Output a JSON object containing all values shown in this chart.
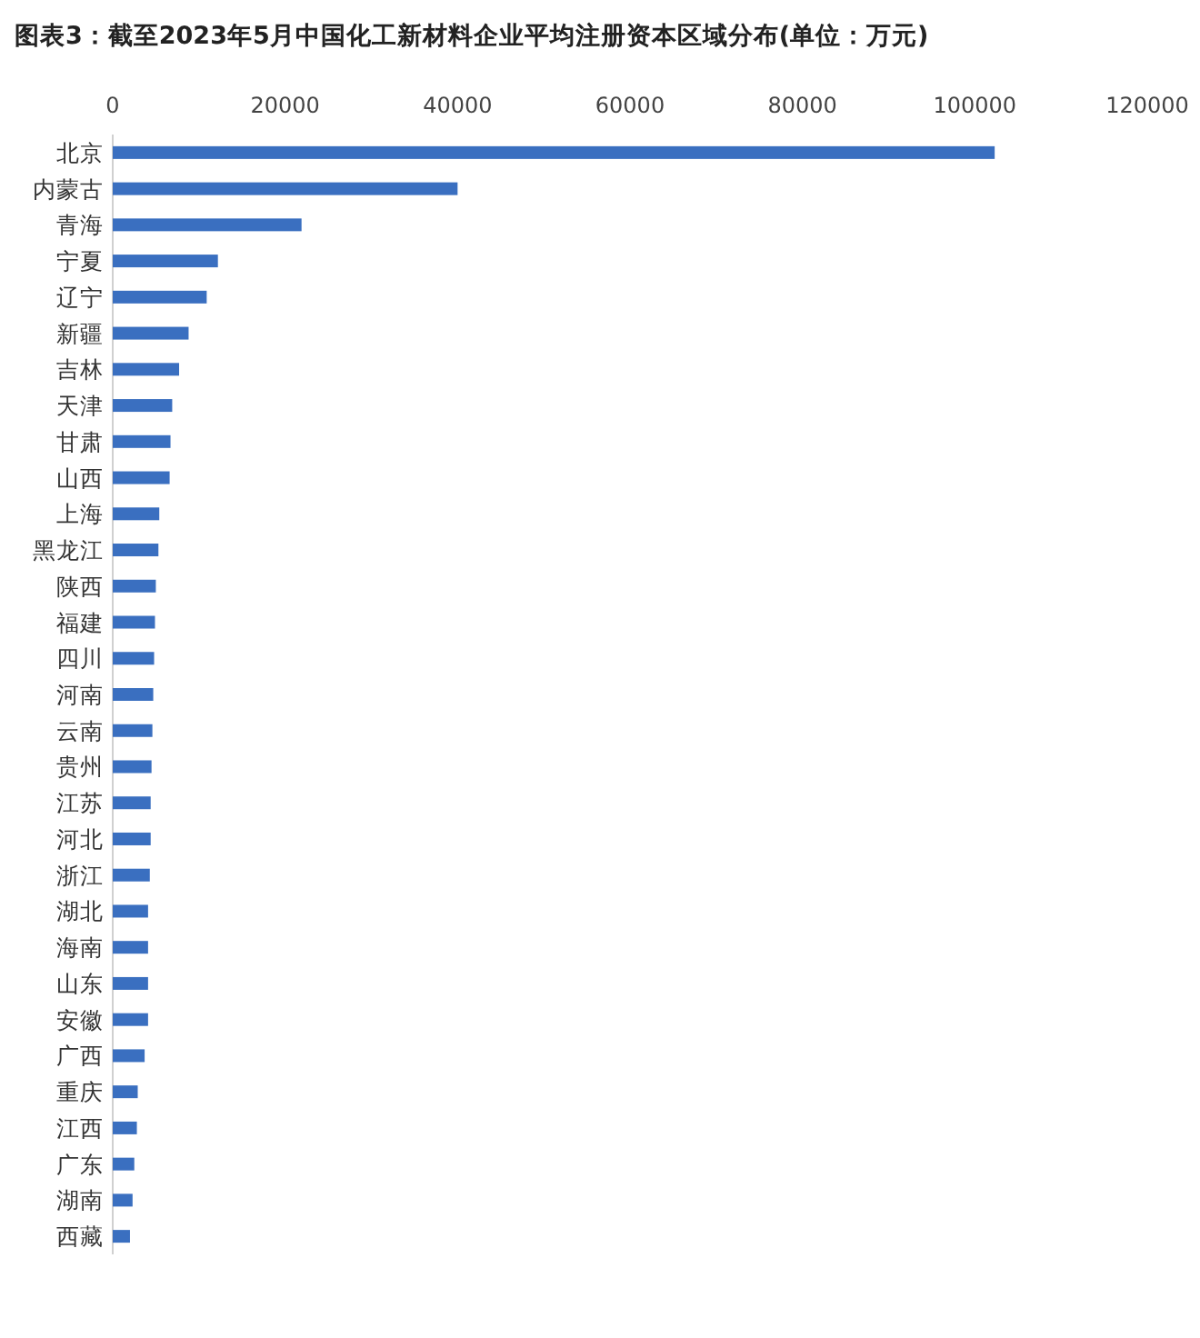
{
  "chart_data": {
    "type": "bar",
    "orientation": "horizontal",
    "title": "图表3：截至2023年5月中国化工新材料企业平均注册资本区域分布(单位：万元)",
    "categories": [
      "北京",
      "内蒙古",
      "青海",
      "宁夏",
      "辽宁",
      "新疆",
      "吉林",
      "天津",
      "甘肃",
      "山西",
      "上海",
      "黑龙江",
      "陕西",
      "福建",
      "四川",
      "河南",
      "云南",
      "贵州",
      "江苏",
      "河北",
      "浙江",
      "湖北",
      "海南",
      "山东",
      "安徽",
      "广西",
      "重庆",
      "江西",
      "广东",
      "湖南",
      "西藏"
    ],
    "values": [
      102300,
      40000,
      21900,
      12200,
      10900,
      8800,
      7700,
      6900,
      6700,
      6600,
      5400,
      5300,
      5000,
      4900,
      4800,
      4700,
      4600,
      4500,
      4400,
      4400,
      4300,
      4100,
      4100,
      4100,
      4100,
      3700,
      2900,
      2800,
      2500,
      2300,
      2000
    ],
    "color": "#3a6fc0",
    "xlim": [
      0,
      120000
    ],
    "xticks": [
      0,
      20000,
      40000,
      60000,
      80000,
      100000,
      120000
    ],
    "grid": false
  }
}
